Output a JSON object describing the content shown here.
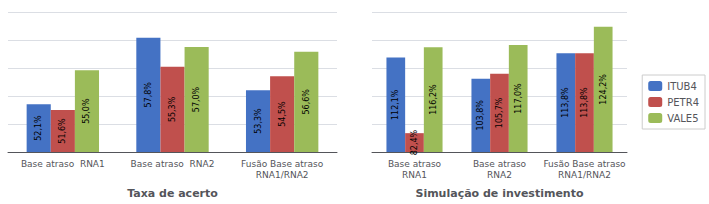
{
  "chart_data": [
    {
      "type": "bar",
      "xlabel": "Taxa de acerto",
      "categories": [
        "Base atraso  RNA1",
        "Base atraso  RNA2",
        "Fusão Base atraso\nRNA1/RNA2"
      ],
      "series": [
        {
          "name": "ITUB4",
          "color": "#4472C4",
          "values": [
            52.1,
            57.8,
            53.3
          ],
          "value_labels": [
            "52,1%",
            "57,8%",
            "53,3%"
          ]
        },
        {
          "name": "PETR4",
          "color": "#C0504D",
          "values": [
            51.6,
            55.3,
            54.5
          ],
          "value_labels": [
            "51,6%",
            "55,3%",
            "54,5%"
          ]
        },
        {
          "name": "VALE5",
          "color": "#9BBB59",
          "values": [
            55.0,
            57.0,
            56.6
          ],
          "value_labels": [
            "55,0%",
            "57,0%",
            "56,6%"
          ]
        }
      ],
      "ylim": [
        48,
        60
      ],
      "yticks": [
        48,
        50.4,
        52.8,
        55.2,
        57.6,
        60
      ],
      "grid": true,
      "tick_labels": "x",
      "data_labels": true,
      "legend": false
    },
    {
      "type": "bar",
      "xlabel": "Simulação de investimento",
      "categories": [
        "Base atraso\nRNA1",
        "Base atraso\nRNA2",
        "Fusão Base atraso\nRNA1/RNA2"
      ],
      "series": [
        {
          "name": "ITUB4",
          "color": "#4472C4",
          "values": [
            112.1,
            103.8,
            113.8
          ],
          "value_labels": [
            "112,1%",
            "103,8%",
            "113,8%"
          ]
        },
        {
          "name": "PETR4",
          "color": "#C0504D",
          "values": [
            82.4,
            105.7,
            113.8
          ],
          "value_labels": [
            "82,4%",
            "105,7%",
            "113,8%"
          ]
        },
        {
          "name": "VALE5",
          "color": "#9BBB59",
          "values": [
            116.2,
            117.0,
            124.2
          ],
          "value_labels": [
            "116,2%",
            "117,0%",
            "124,2%"
          ]
        }
      ],
      "ylim": [
        75,
        130
      ],
      "yticks": [
        75,
        86,
        97,
        108,
        119,
        130
      ],
      "grid": true,
      "tick_labels": "x",
      "data_labels": true,
      "legend": "right"
    }
  ]
}
